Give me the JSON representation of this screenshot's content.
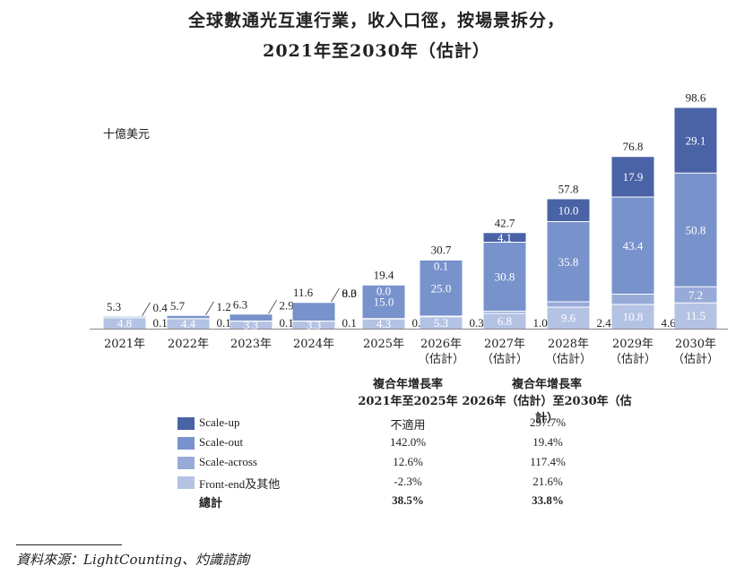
{
  "title_line1": "全球數通光互連行業，收入口徑，按場景拆分，",
  "title_line2": "2021年至2030年（估計）",
  "unit": "十億美元",
  "colors": {
    "scale_up": "#4a62a6",
    "scale_out": "#7892cb",
    "scale_across": "#98abd8",
    "front_end": "#b4c3e4"
  },
  "chart_data": {
    "type": "bar",
    "stacked": true,
    "categories": [
      "2021年",
      "2022年",
      "2023年",
      "2024年",
      "2025年",
      "2026年\n（估計）",
      "2027年\n（估計）",
      "2028年\n（估計）",
      "2029年\n（估計）",
      "2030年\n（估計）"
    ],
    "series": [
      {
        "name": "Front-end及其他",
        "values": [
          4.8,
          4.4,
          3.3,
          3.3,
          4.3,
          5.3,
          6.8,
          9.6,
          10.8,
          11.5
        ]
      },
      {
        "name": "Scale-across",
        "values": [
          0.1,
          0.1,
          0.1,
          0.1,
          0.2,
          0.3,
          1.0,
          2.4,
          4.6,
          7.2
        ]
      },
      {
        "name": "Scale-out",
        "values": [
          0.4,
          1.2,
          2.9,
          8.3,
          15.0,
          25.0,
          30.8,
          35.8,
          43.4,
          50.8
        ]
      },
      {
        "name": "Scale-up",
        "values": [
          null,
          null,
          null,
          0.0,
          0.0,
          0.1,
          4.1,
          10.0,
          17.9,
          29.1
        ]
      }
    ],
    "totals": [
      5.3,
      5.7,
      6.3,
      11.6,
      19.4,
      30.7,
      42.7,
      57.8,
      76.8,
      98.6
    ],
    "ylim": [
      0,
      100
    ],
    "ylabel": "十億美元"
  },
  "cagr": {
    "head1": [
      "複合年增長率",
      "2021年至2025年"
    ],
    "head2": [
      "複合年增長率",
      "2026年（估計）至2030年（估計）"
    ],
    "rows": [
      {
        "name": "Scale-up",
        "v1": "不適用",
        "v2": "297.7%"
      },
      {
        "name": "Scale-out",
        "v1": "142.0%",
        "v2": "19.4%"
      },
      {
        "name": "Scale-across",
        "v1": "12.6%",
        "v2": "117.4%"
      },
      {
        "name": "Front-end及其他",
        "v1": "-2.3%",
        "v2": "21.6%"
      }
    ],
    "total": {
      "name": "總計",
      "v1": "38.5%",
      "v2": "33.8%"
    }
  },
  "source": "資料來源：LightCounting、灼識諮詢"
}
